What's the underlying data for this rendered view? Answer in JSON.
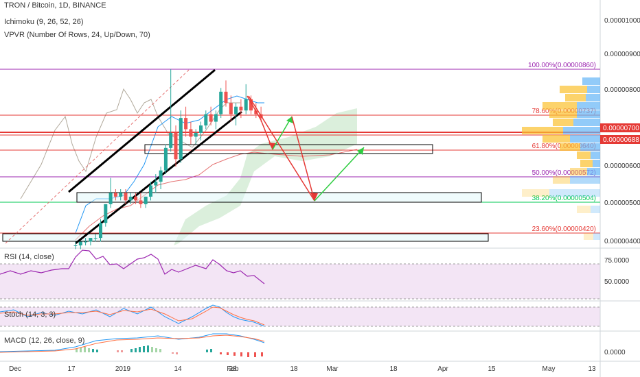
{
  "legend": {
    "symbol": "TRON / Bitcoin, 1D, BINANCE",
    "ichimoku": "Ichimoku (9, 26, 52, 26)",
    "vpvr": "VPVR (Number Of Rows, 24, Up/Down, 70)",
    "rsi": "RSI (14, close)",
    "stoch": "Stoch (14, 3, 3)",
    "macd": "MACD (12, 26, close, 9)"
  },
  "colors": {
    "up": "#26a69a",
    "down": "#ef5350",
    "fib": "#9c27b0",
    "fib_green": "#00c853",
    "red_line": "#e53935",
    "rsi_fill": "#f3e5f5",
    "cloud": "#c8e6c9",
    "channel": "#000000",
    "arrow_red": "#e53935",
    "arrow_green": "#2ecc40"
  },
  "chart_data": {
    "type": "candlestick",
    "title": "TRON / Bitcoin, 1D, BINANCE",
    "x_ticks": [
      "Dec",
      "17",
      "2019",
      "14",
      "28",
      "Feb",
      "18",
      "Mar",
      "18",
      "Apr",
      "15",
      "May",
      "13"
    ],
    "y_ticks": [
      "0.00001000",
      "0.00000900",
      "0.00000800",
      "0.00000600",
      "0.00000500",
      "0.00000400"
    ],
    "ylim": [
      3.9e-06,
      1.09e-05
    ],
    "price_labels": [
      {
        "text": "0.00000700",
        "value": 7e-06,
        "color": "#e53935"
      },
      {
        "text": "0.00000688",
        "value": 6.88e-06,
        "color": "#e53935"
      }
    ],
    "fib_levels": [
      {
        "label": "100.00%(0.00000860)",
        "value": 8.6e-06,
        "color": "#9c27b0"
      },
      {
        "label": "78.60%(0.00000737)",
        "value": 7.37e-06,
        "color": "#e53935"
      },
      {
        "label": "61.80%(0.00000640)",
        "value": 6.4e-06,
        "color": "#e53935"
      },
      {
        "label": "50.00%(0.00000572)",
        "value": 5.72e-06,
        "color": "#9c27b0"
      },
      {
        "label": "38.20%(0.00000504)",
        "value": 5.04e-06,
        "color": "#00c853"
      },
      {
        "label": "23.60%(0.00000420)",
        "value": 4.2e-06,
        "color": "#e53935"
      }
    ],
    "candles": [
      [
        3.9e-06,
        4e-06,
        3.8e-06,
        3.9e-06
      ],
      [
        3.9e-06,
        4e-06,
        3.8e-06,
        4e-06
      ],
      [
        4e-06,
        4.1e-06,
        3.9e-06,
        4e-06
      ],
      [
        4e-06,
        4.1e-06,
        3.9e-06,
        4.1e-06
      ],
      [
        4.1e-06,
        4.2e-06,
        4e-06,
        4.1e-06
      ],
      [
        4.1e-06,
        4.6e-06,
        4e-06,
        4.5e-06
      ],
      [
        4.5e-06,
        5e-06,
        4.4e-06,
        5e-06
      ],
      [
        5e-06,
        5.7e-06,
        4.9e-06,
        5.3e-06
      ],
      [
        5.3e-06,
        5.4e-06,
        5.1e-06,
        5.2e-06
      ],
      [
        5.2e-06,
        5.4e-06,
        5.1e-06,
        5.3e-06
      ],
      [
        5.3e-06,
        5.4e-06,
        5e-06,
        5.1e-06
      ],
      [
        5.1e-06,
        5.3e-06,
        5e-06,
        5.2e-06
      ],
      [
        5.2e-06,
        5.3e-06,
        5e-06,
        5.1e-06
      ],
      [
        5.1e-06,
        5.3e-06,
        4.9e-06,
        5e-06
      ],
      [
        5e-06,
        5.2e-06,
        4.9e-06,
        5.2e-06
      ],
      [
        5.2e-06,
        5.6e-06,
        5.1e-06,
        5.5e-06
      ],
      [
        5.5e-06,
        5.8e-06,
        5.3e-06,
        5.6e-06
      ],
      [
        5.6e-06,
        6e-06,
        5.4e-06,
        5.9e-06
      ],
      [
        5.9e-06,
        6.6e-06,
        5.8e-06,
        6.5e-06
      ],
      [
        6.5e-06,
        8.6e-06,
        6.4e-06,
        6.9e-06
      ],
      [
        6.9e-06,
        7.1e-06,
        6e-06,
        6.2e-06
      ],
      [
        6.2e-06,
        7.5e-06,
        6.1e-06,
        7.3e-06
      ],
      [
        7.3e-06,
        7.6e-06,
        6.8e-06,
        7e-06
      ],
      [
        7e-06,
        7.2e-06,
        6.6e-06,
        6.8e-06
      ],
      [
        6.8e-06,
        7e-06,
        6.6e-06,
        6.9e-06
      ],
      [
        6.9e-06,
        7.2e-06,
        6.7e-06,
        7.1e-06
      ],
      [
        7.1e-06,
        7.5e-06,
        7e-06,
        7.4e-06
      ],
      [
        7.4e-06,
        7.6e-06,
        7.1e-06,
        7.2e-06
      ],
      [
        7.2e-06,
        7.5e-06,
        7e-06,
        7.4e-06
      ],
      [
        7.4e-06,
        8.1e-06,
        7.3e-06,
        8e-06
      ],
      [
        8e-06,
        8.3e-06,
        7.6e-06,
        7.7e-06
      ],
      [
        7.7e-06,
        7.9e-06,
        7.2e-06,
        7.4e-06
      ],
      [
        7.4e-06,
        7.7e-06,
        7.1e-06,
        7.6e-06
      ],
      [
        7.6e-06,
        7.8e-06,
        7.3e-06,
        7.5e-06
      ],
      [
        7.5e-06,
        8.2e-06,
        7.4e-06,
        7.8e-06
      ],
      [
        7.8e-06,
        7.9e-06,
        7.4e-06,
        7.5e-06
      ],
      [
        7.5e-06,
        7.7e-06,
        7.3e-06,
        7.4e-06
      ],
      [
        7.4e-06,
        7.6e-06,
        7.2e-06,
        7.3e-06
      ]
    ],
    "rsi_ticks": [
      "75.0000",
      "50.0000"
    ],
    "macd_ticks": [
      "0.0000"
    ]
  }
}
